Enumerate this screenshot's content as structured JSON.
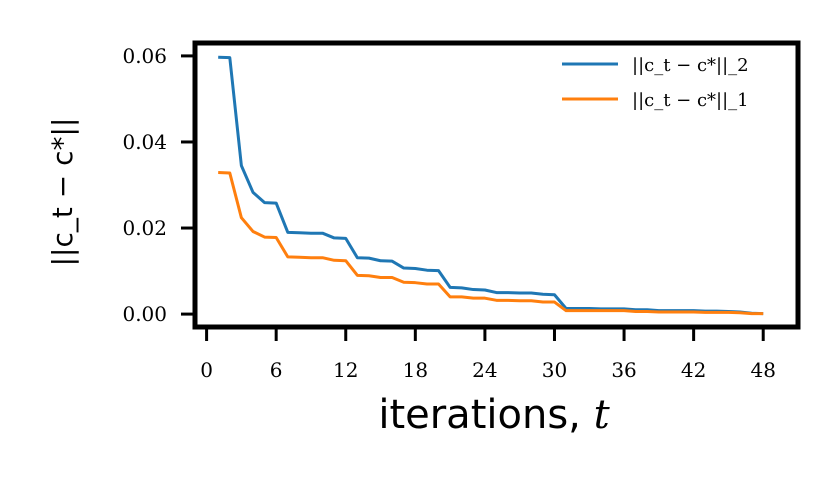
{
  "chart_data": {
    "type": "line",
    "title": "",
    "xlabel_text": "iterations,",
    "xlabel_var": "t",
    "ylabel": "||c_t − c*||",
    "xlim": [
      -1,
      51
    ],
    "ylim": [
      -0.003,
      0.063
    ],
    "xticks": [
      0,
      6,
      12,
      18,
      24,
      30,
      36,
      42,
      48
    ],
    "xtick_labels": [
      "0",
      "6",
      "12",
      "18",
      "24",
      "30",
      "36",
      "42",
      "48"
    ],
    "yticks": [
      0.0,
      0.02,
      0.04,
      0.06
    ],
    "ytick_labels": [
      "0.00",
      "0.02",
      "0.04",
      "0.06"
    ],
    "grid": false,
    "legend_position": "top-right",
    "x": [
      1,
      2,
      3,
      4,
      5,
      6,
      7,
      8,
      9,
      10,
      11,
      12,
      13,
      14,
      15,
      16,
      17,
      18,
      19,
      20,
      21,
      22,
      23,
      24,
      25,
      26,
      27,
      28,
      29,
      30,
      31,
      32,
      33,
      34,
      35,
      36,
      37,
      38,
      39,
      40,
      41,
      42,
      43,
      44,
      45,
      46,
      47,
      48
    ],
    "series": [
      {
        "name": "||c_t − c*||_2",
        "color": "#1f77b4",
        "values": [
          0.0597,
          0.0596,
          0.0345,
          0.0283,
          0.0259,
          0.0258,
          0.019,
          0.0189,
          0.0188,
          0.0188,
          0.0177,
          0.0176,
          0.0131,
          0.013,
          0.0124,
          0.0123,
          0.0107,
          0.0106,
          0.0102,
          0.0101,
          0.0062,
          0.0061,
          0.0057,
          0.0056,
          0.005,
          0.005,
          0.0049,
          0.0049,
          0.0046,
          0.0045,
          0.0013,
          0.0013,
          0.0013,
          0.0012,
          0.0012,
          0.0012,
          0.001,
          0.001,
          0.0008,
          0.0008,
          0.0008,
          0.0008,
          0.0007,
          0.0007,
          0.0006,
          0.0005,
          0.0002,
          0.0001
        ]
      },
      {
        "name": "||c_t − c*||_1",
        "color": "#ff7f0e",
        "values": [
          0.0329,
          0.0328,
          0.0224,
          0.0192,
          0.0179,
          0.0178,
          0.0133,
          0.0132,
          0.0131,
          0.0131,
          0.0125,
          0.0124,
          0.009,
          0.0089,
          0.0085,
          0.0085,
          0.0074,
          0.0073,
          0.007,
          0.007,
          0.004,
          0.004,
          0.0037,
          0.0037,
          0.0032,
          0.0032,
          0.0031,
          0.0031,
          0.0028,
          0.0028,
          0.0008,
          0.0008,
          0.0008,
          0.0008,
          0.0008,
          0.0008,
          0.0006,
          0.0006,
          0.0005,
          0.0005,
          0.0005,
          0.0005,
          0.0004,
          0.0004,
          0.0004,
          0.0003,
          0.0001,
          0.0001
        ]
      }
    ]
  }
}
